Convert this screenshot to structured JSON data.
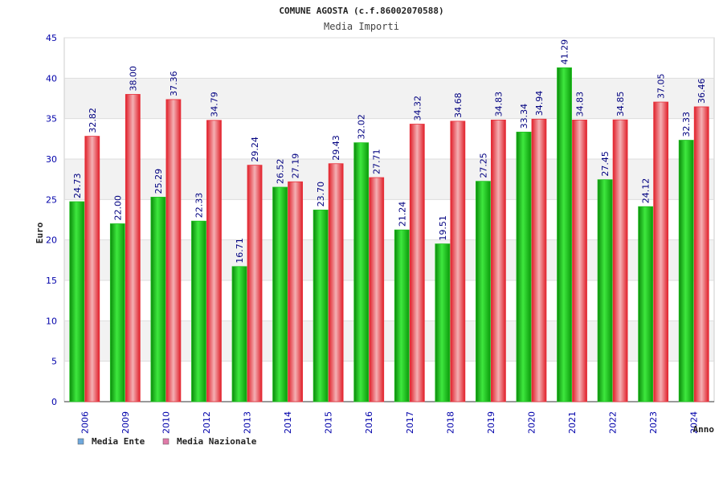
{
  "chart_data": {
    "type": "bar",
    "title": "COMUNE AGOSTA (c.f.86002070588)",
    "subtitle": "Media Importi",
    "xlabel": "Anno",
    "ylabel": "Euro",
    "ylim": [
      0,
      45
    ],
    "yticks": [
      0,
      5,
      10,
      15,
      20,
      25,
      30,
      35,
      40,
      45
    ],
    "grid": true,
    "legend_position": "bottom-left",
    "categories": [
      "2006",
      "2009",
      "2010",
      "2012",
      "2013",
      "2014",
      "2015",
      "2016",
      "2017",
      "2018",
      "2019",
      "2020",
      "2021",
      "2022",
      "2023",
      "2024"
    ],
    "series": [
      {
        "name": "Media Ente",
        "legend_color": "#6fa8dc",
        "bar_color": "#1fbf1f",
        "values": [
          24.73,
          22.0,
          25.29,
          22.33,
          16.71,
          26.52,
          23.7,
          32.02,
          21.24,
          19.51,
          27.25,
          33.34,
          41.29,
          27.45,
          24.12,
          32.33
        ],
        "labels": [
          "24.73",
          "22.00",
          "25.29",
          "22.33",
          "16.71",
          "26.52",
          "23.70",
          "32.02",
          "21.24",
          "19.51",
          "27.25",
          "33.34",
          "41.29",
          "27.45",
          "24.12",
          "32.33"
        ]
      },
      {
        "name": "Media Nazionale",
        "legend_color": "#e07aa8",
        "bar_color": "#e8303a",
        "values": [
          32.82,
          38.0,
          37.36,
          34.79,
          29.24,
          27.19,
          29.43,
          27.71,
          34.32,
          34.68,
          34.83,
          34.94,
          34.83,
          34.85,
          37.05,
          36.46
        ],
        "labels": [
          "32.82",
          "38.00",
          "37.36",
          "34.79",
          "29.24",
          "27.19",
          "29.43",
          "27.71",
          "34.32",
          "34.68",
          "34.83",
          "34.94",
          "34.83",
          "34.85",
          "37.05",
          "36.46"
        ]
      }
    ],
    "colors": {
      "tick_label": "#0000aa",
      "value_label": "#000080",
      "band": "#f2f2f2",
      "grid": "#dddddd",
      "axis": "#333333"
    }
  }
}
